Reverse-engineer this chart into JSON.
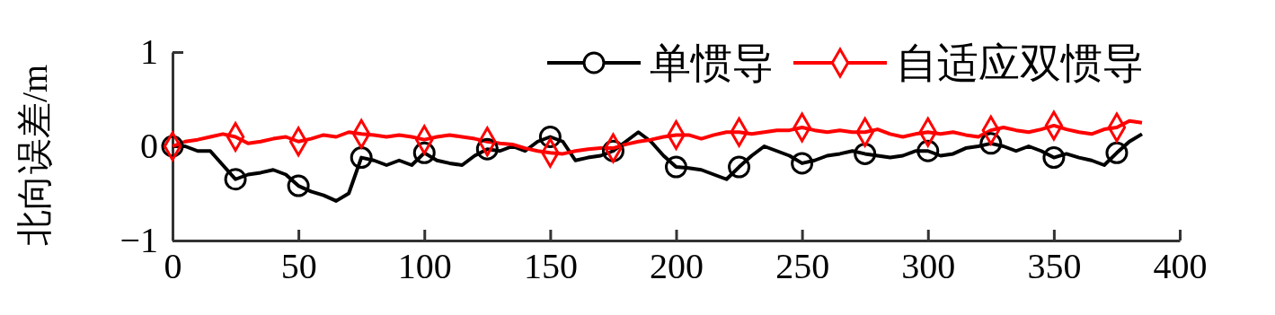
{
  "chart_data": {
    "type": "line",
    "ylabel": "北向误差/m",
    "x": [
      0,
      5,
      10,
      15,
      20,
      25,
      30,
      35,
      40,
      45,
      50,
      55,
      60,
      65,
      70,
      75,
      80,
      85,
      90,
      95,
      100,
      105,
      110,
      115,
      120,
      125,
      130,
      135,
      140,
      145,
      150,
      155,
      160,
      165,
      170,
      175,
      180,
      185,
      190,
      195,
      200,
      205,
      210,
      215,
      220,
      225,
      230,
      235,
      240,
      245,
      250,
      255,
      260,
      265,
      270,
      275,
      280,
      285,
      290,
      295,
      300,
      305,
      310,
      315,
      320,
      325,
      330,
      335,
      340,
      345,
      350,
      355,
      360,
      365,
      370,
      375,
      380,
      385
    ],
    "series": [
      {
        "name": "单惯导",
        "color": "#000000",
        "values": [
          0,
          0,
          -0.05,
          -0.05,
          -0.2,
          -0.35,
          -0.3,
          -0.28,
          -0.25,
          -0.3,
          -0.42,
          -0.48,
          -0.52,
          -0.58,
          -0.5,
          -0.12,
          -0.15,
          -0.2,
          -0.15,
          -0.2,
          -0.07,
          -0.15,
          -0.18,
          -0.2,
          -0.1,
          -0.03,
          -0.05,
          0,
          -0.05,
          0.05,
          0.1,
          0.05,
          -0.15,
          -0.12,
          -0.1,
          -0.05,
          0.05,
          0.15,
          0.05,
          -0.1,
          -0.22,
          -0.23,
          -0.25,
          -0.3,
          -0.35,
          -0.22,
          -0.1,
          0,
          -0.05,
          -0.1,
          -0.18,
          -0.15,
          -0.1,
          -0.08,
          -0.05,
          -0.08,
          -0.1,
          -0.12,
          -0.1,
          -0.05,
          -0.05,
          -0.1,
          -0.08,
          -0.02,
          0,
          0.03,
          0,
          -0.05,
          0,
          -0.05,
          -0.12,
          -0.08,
          -0.12,
          -0.15,
          -0.2,
          -0.07,
          0.05,
          0.13
        ]
      },
      {
        "name": "自适应双惯导",
        "color": "#ff0000",
        "values": [
          0,
          0.05,
          0.07,
          0.1,
          0.13,
          0.1,
          0.03,
          0.05,
          0.08,
          0.1,
          0.05,
          0.08,
          0.12,
          0.1,
          0.15,
          0.13,
          0.12,
          0.1,
          0.12,
          0.1,
          0.07,
          0.1,
          0.12,
          0.1,
          0.08,
          0.05,
          0.03,
          0.02,
          -0.02,
          -0.05,
          -0.07,
          -0.08,
          -0.05,
          -0.03,
          -0.02,
          -0.02,
          0.02,
          0.05,
          0.07,
          0.1,
          0.12,
          0.12,
          0.08,
          0.12,
          0.15,
          0.15,
          0.13,
          0.15,
          0.17,
          0.17,
          0.2,
          0.17,
          0.15,
          0.17,
          0.15,
          0.15,
          0.18,
          0.13,
          0.1,
          0.13,
          0.15,
          0.13,
          0.15,
          0.12,
          0.1,
          0.17,
          0.2,
          0.17,
          0.15,
          0.18,
          0.22,
          0.18,
          0.15,
          0.13,
          0.18,
          0.2,
          0.27,
          0.25
        ]
      },
      {
        "type": "scatter",
        "color": "#000000",
        "marker": "circle",
        "x": [
          0,
          25,
          50,
          75,
          100,
          125,
          150,
          175,
          200,
          225,
          250,
          275,
          300,
          325,
          350,
          375
        ],
        "values": [
          0,
          -0.35,
          -0.42,
          -0.12,
          -0.07,
          -0.03,
          0.1,
          -0.05,
          -0.22,
          -0.22,
          -0.18,
          -0.08,
          -0.05,
          0.03,
          -0.12,
          -0.07
        ]
      },
      {
        "type": "scatter",
        "color": "#ff0000",
        "marker": "diamond",
        "x": [
          0,
          25,
          50,
          75,
          100,
          125,
          150,
          175,
          200,
          225,
          250,
          275,
          300,
          325,
          350,
          375
        ],
        "values": [
          0,
          0.1,
          0.05,
          0.13,
          0.07,
          0.05,
          -0.07,
          -0.02,
          0.12,
          0.15,
          0.2,
          0.15,
          0.15,
          0.17,
          0.22,
          0.2
        ]
      }
    ],
    "xlim": [
      0,
      400
    ],
    "xticks": [
      0,
      50,
      100,
      150,
      200,
      250,
      300,
      350,
      400
    ],
    "ylim": [
      -1,
      1
    ],
    "yticks": [
      {
        "value": -1,
        "label": "−1"
      },
      0,
      1
    ],
    "legend": "top right",
    "grid": false,
    "line_style": "solid"
  }
}
